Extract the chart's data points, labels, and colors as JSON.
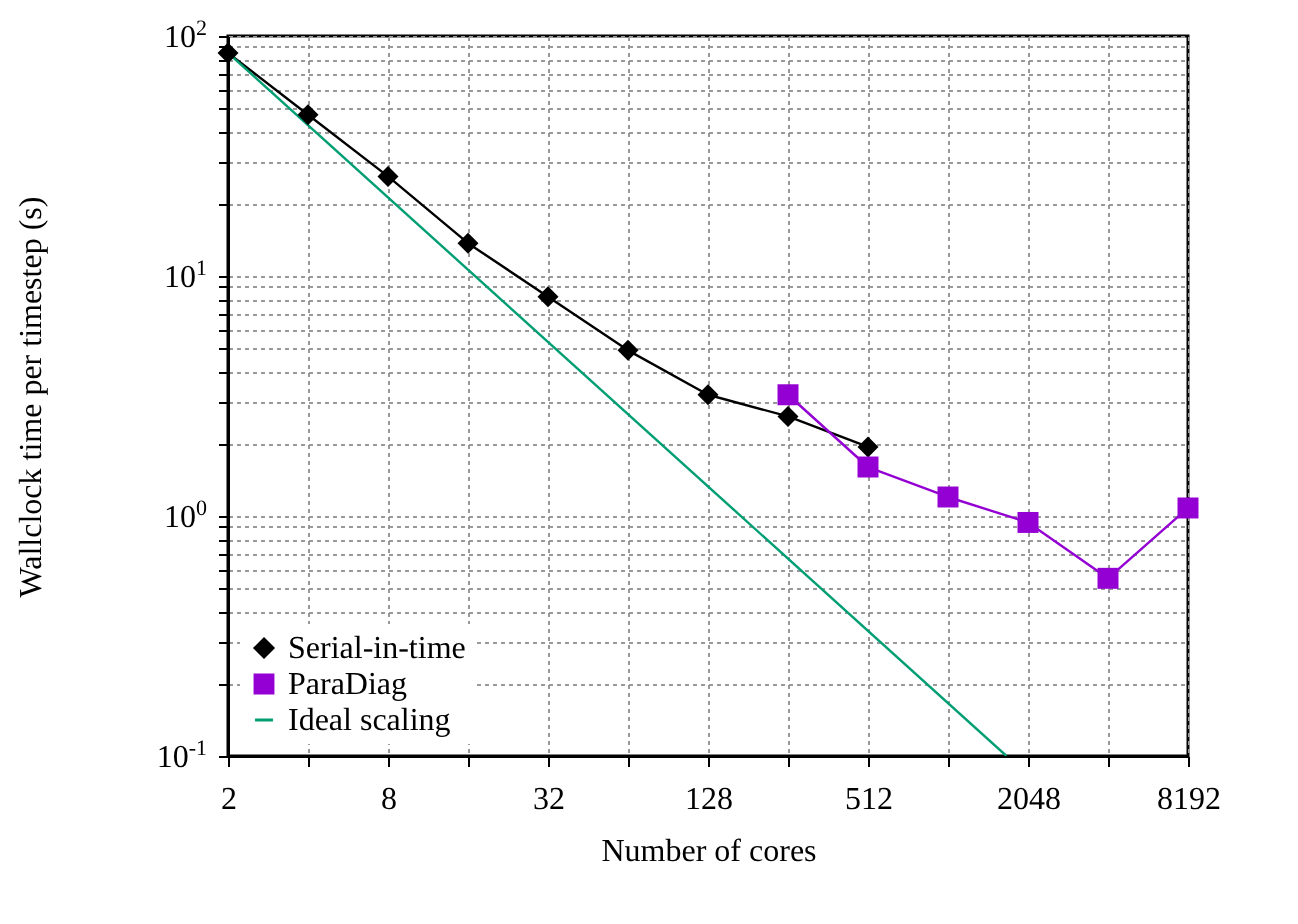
{
  "chart_data": {
    "type": "line",
    "xlabel": "Number of cores",
    "ylabel": "Wallclock time per timestep (s)",
    "log": "xy",
    "grid": true,
    "legend": "bottom left",
    "xlim": [
      2,
      8192
    ],
    "ylim": [
      0.1,
      100
    ],
    "xticks": [
      2,
      {
        "value": 4,
        "label": null
      },
      8,
      {
        "value": 16,
        "label": null
      },
      32,
      {
        "value": 64,
        "label": null
      },
      128,
      {
        "value": 256,
        "label": null
      },
      512,
      {
        "value": 1024,
        "label": null
      },
      2048,
      {
        "value": 4096,
        "label": null
      },
      8192
    ],
    "yticks": [
      {
        "value": 0.1,
        "label": "10$^{-1}$"
      },
      {
        "value": 0.2,
        "label": null
      },
      {
        "value": 0.3,
        "label": null
      },
      {
        "value": 0.4,
        "label": null
      },
      {
        "value": 0.5,
        "label": null
      },
      {
        "value": 0.6,
        "label": null
      },
      {
        "value": 0.7,
        "label": null
      },
      {
        "value": 0.8,
        "label": null
      },
      {
        "value": 0.9,
        "label": null
      },
      {
        "value": 1,
        "label": "10$^{0}$"
      },
      {
        "value": 2,
        "label": null
      },
      {
        "value": 3,
        "label": null
      },
      {
        "value": 4,
        "label": null
      },
      {
        "value": 5,
        "label": null
      },
      {
        "value": 6,
        "label": null
      },
      {
        "value": 7,
        "label": null
      },
      {
        "value": 8,
        "label": null
      },
      {
        "value": 9,
        "label": null
      },
      {
        "value": 10,
        "label": "10$^{1}$"
      },
      {
        "value": 20,
        "label": null
      },
      {
        "value": 30,
        "label": null
      },
      {
        "value": 40,
        "label": null
      },
      {
        "value": 50,
        "label": null
      },
      {
        "value": 60,
        "label": null
      },
      {
        "value": 70,
        "label": null
      },
      {
        "value": 80,
        "label": null
      },
      {
        "value": 90,
        "label": null
      },
      {
        "value": 100,
        "label": "10$^{2}$"
      }
    ],
    "series": [
      {
        "name": "Serial-in-time",
        "color": "#000000",
        "marker": "diamond",
        "x": [
          2,
          4,
          8,
          16,
          32,
          64,
          128,
          256,
          512
        ],
        "values": [
          85,
          47,
          26,
          13.7,
          8.2,
          4.9,
          3.2,
          2.6,
          1.94
        ]
      },
      {
        "name": "ParaDiag",
        "color": "#9400d3",
        "marker": "square",
        "x": [
          256,
          512,
          1024,
          2048,
          4096,
          8192
        ],
        "values": [
          3.2,
          1.6,
          1.2,
          0.94,
          0.55,
          1.08
        ]
      },
      {
        "name": "Ideal scaling",
        "color": "#009e73",
        "marker": "none",
        "x": [
          2,
          1700
        ],
        "values": [
          85,
          0.1
        ]
      }
    ]
  }
}
